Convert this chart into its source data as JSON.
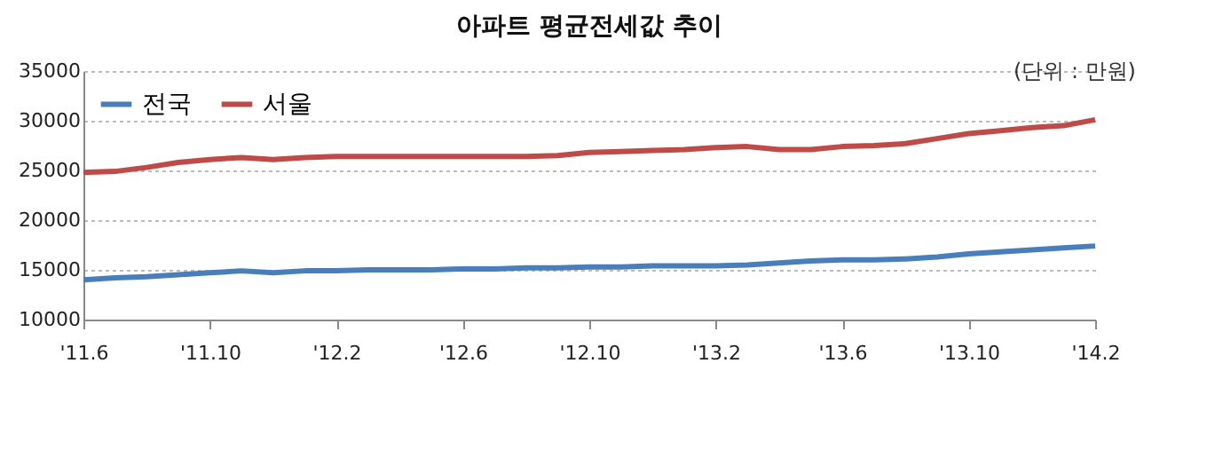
{
  "chart_data": {
    "type": "line",
    "title": "아파트 평균전세값 추이",
    "annotations": [
      "(단위 : 만원)"
    ],
    "categories": [
      "'11.6",
      null,
      null,
      null,
      "'11.10",
      null,
      null,
      null,
      "'12.2",
      null,
      null,
      null,
      "'12.6",
      null,
      null,
      null,
      "'12.10",
      null,
      null,
      null,
      "'13.2",
      null,
      null,
      null,
      "'13.6",
      null,
      null,
      null,
      "'13.10",
      null,
      null,
      null,
      "'14.2"
    ],
    "series": [
      {
        "name": "전국",
        "color": "#4a7ebb",
        "values": [
          14000,
          14200,
          14300,
          14500,
          14700,
          14900,
          14700,
          14900,
          14900,
          15000,
          15000,
          15000,
          15100,
          15100,
          15200,
          15200,
          15300,
          15300,
          15400,
          15400,
          15400,
          15500,
          15700,
          15900,
          16000,
          16000,
          16100,
          16300,
          16600,
          16800,
          17000,
          17200,
          17400
        ]
      },
      {
        "name": "서울",
        "color": "#be4b48",
        "values": [
          24800,
          24900,
          25300,
          25800,
          26100,
          26300,
          26100,
          26300,
          26400,
          26400,
          26400,
          26400,
          26400,
          26400,
          26400,
          26500,
          26800,
          26900,
          27000,
          27100,
          27300,
          27400,
          27100,
          27100,
          27400,
          27500,
          27700,
          28200,
          28700,
          29000,
          29300,
          29500,
          30100
        ]
      }
    ],
    "ylim": [
      10000,
      35000
    ],
    "yticks": [
      10000,
      15000,
      20000,
      25000,
      30000,
      35000
    ],
    "grid": "y",
    "legend": "top left",
    "line_style": "solid",
    "marker": "none"
  }
}
